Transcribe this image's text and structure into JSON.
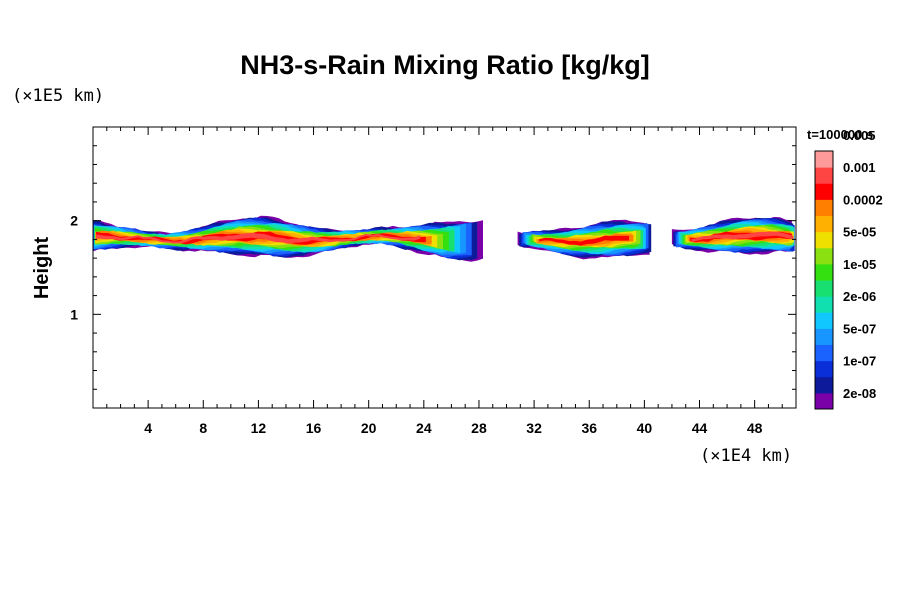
{
  "chart_data": {
    "type": "heatmap",
    "title": "NH3-s-Rain Mixing Ratio [kg/kg]",
    "ylabel": "Height",
    "xlabel": "",
    "x_unit": "(×1E4 km)",
    "y_unit": "(×1E5 km)",
    "xlim": [
      0,
      51
    ],
    "ylim": [
      0,
      3
    ],
    "x_ticks": [
      4,
      8,
      12,
      16,
      20,
      24,
      28,
      32,
      36,
      40,
      44,
      48
    ],
    "x_tick_labels": [
      "4",
      "8",
      "12",
      "16",
      "20",
      "24",
      "28",
      "32",
      "36",
      "40",
      "44",
      "48"
    ],
    "y_ticks": [
      1,
      2
    ],
    "y_tick_labels": [
      "1",
      "2"
    ],
    "time_label": "t=100000 s",
    "colorbar": {
      "colors": [
        "#7a00a8",
        "#0d1a9a",
        "#0a2fd8",
        "#1a63ff",
        "#1896ff",
        "#10c8ff",
        "#10e0b0",
        "#18e070",
        "#34e010",
        "#8ae010",
        "#f0e000",
        "#ffb000",
        "#ff8000",
        "#ff0000",
        "#ff4444",
        "#ff9a9a"
      ],
      "labels": [
        "2e-08",
        "1e-07",
        "5e-07",
        "2e-06",
        "1e-05",
        "5e-05",
        "0.0002",
        "0.001",
        "0.005"
      ]
    },
    "regions": [
      {
        "x_start": 0,
        "x_end": 28.5,
        "y_bottom": 1.62,
        "y_top": 2.0,
        "max_level": 14
      },
      {
        "x_start": 30.8,
        "x_end": 40.8,
        "y_bottom": 1.62,
        "y_top": 1.97,
        "max_level": 13
      },
      {
        "x_start": 42,
        "x_end": 51,
        "y_bottom": 1.65,
        "y_top": 2.0,
        "max_level": 14
      }
    ]
  }
}
